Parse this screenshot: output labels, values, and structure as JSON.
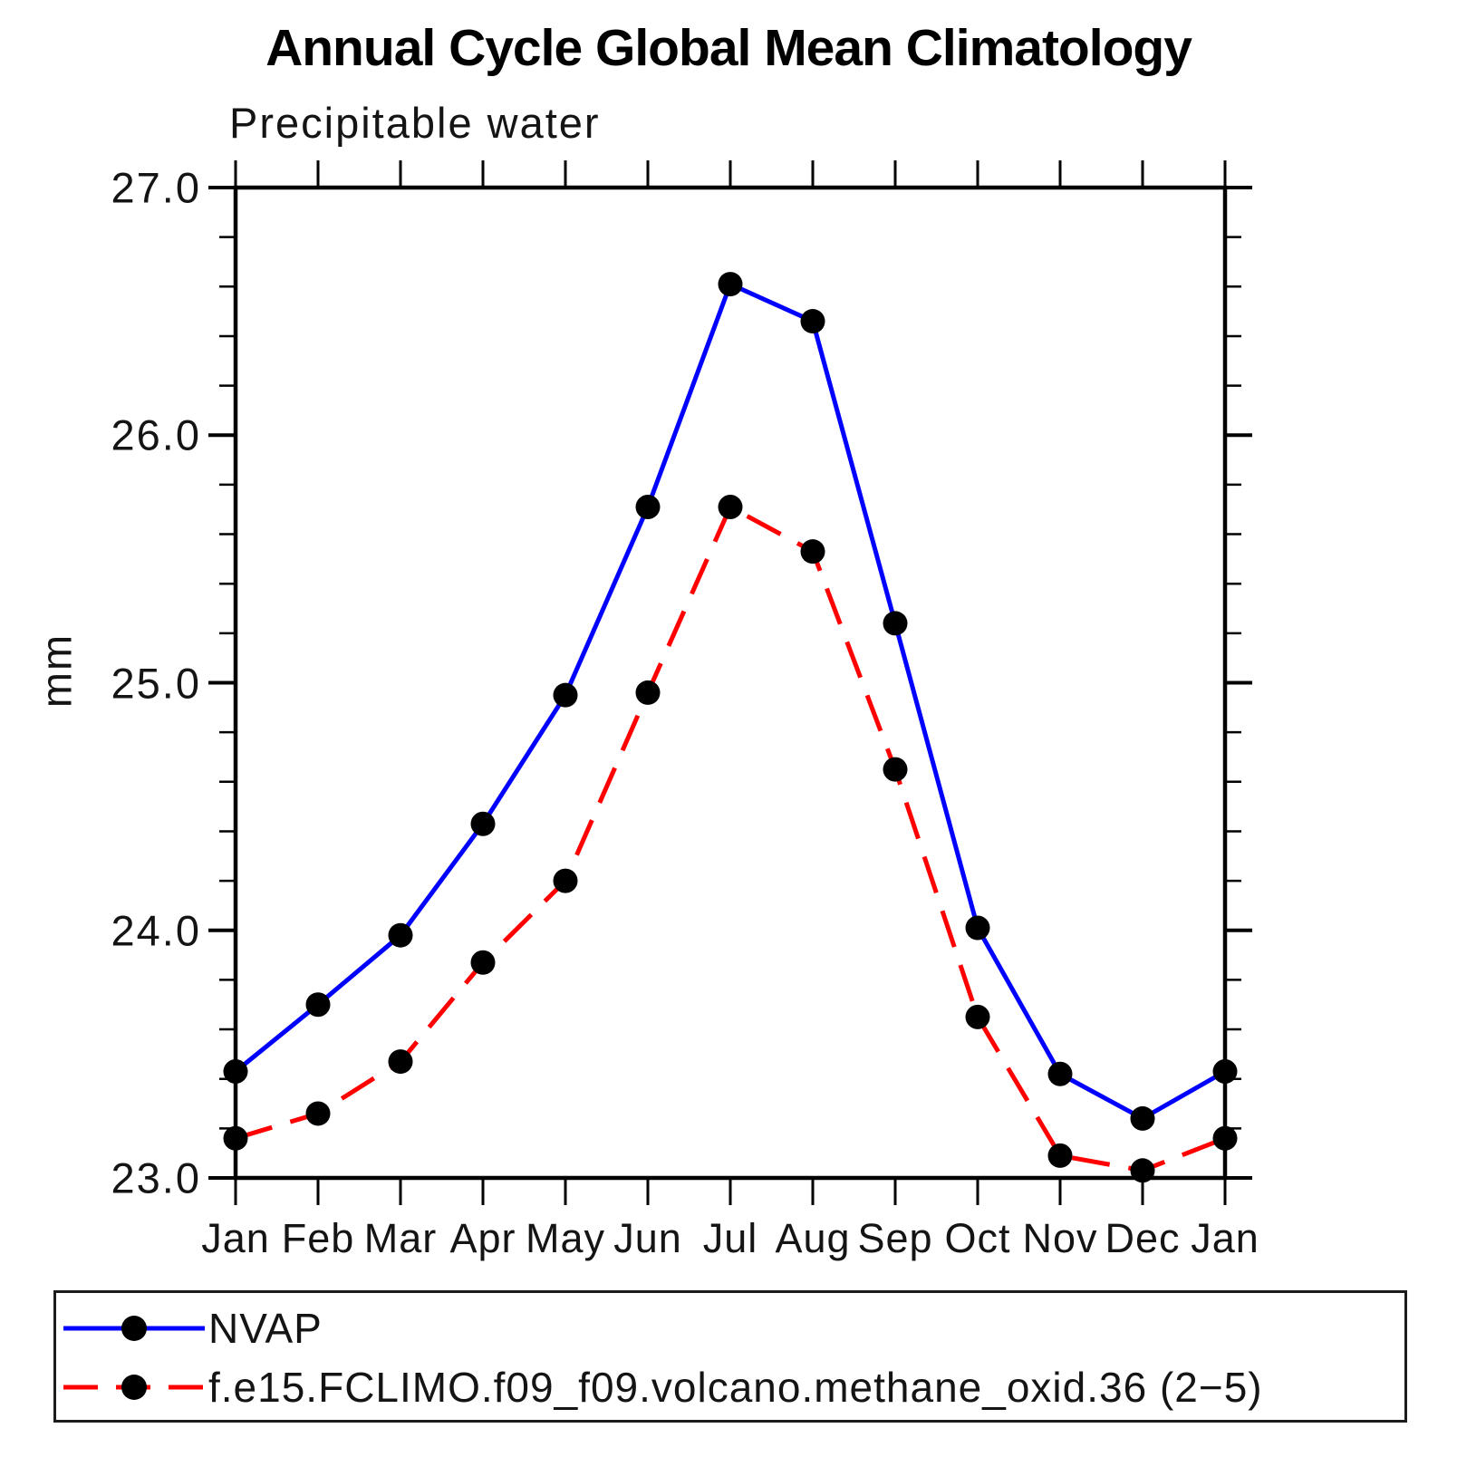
{
  "chart": {
    "title": "Annual Cycle Global Mean Climatology",
    "subtitle": "Precipitable water",
    "ylabel": "mm"
  },
  "chart_data": {
    "type": "line",
    "categories": [
      "Jan",
      "Feb",
      "Mar",
      "Apr",
      "May",
      "Jun",
      "Jul",
      "Aug",
      "Sep",
      "Oct",
      "Nov",
      "Dec",
      "Jan"
    ],
    "series": [
      {
        "name": "NVAP",
        "color": "#0000ff",
        "line_style": "solid",
        "marker": "filled-circle",
        "marker_color": "#000000",
        "values": [
          23.43,
          23.7,
          23.98,
          24.43,
          24.95,
          25.71,
          26.61,
          26.46,
          25.24,
          24.01,
          23.42,
          23.24,
          23.43
        ]
      },
      {
        "name": "f.e15.FCLIMO.f09_f09.volcano.methane_oxid.36 (2−5)",
        "color": "#ff0000",
        "line_style": "dashed",
        "marker": "filled-circle",
        "marker_color": "#000000",
        "values": [
          23.16,
          23.26,
          23.47,
          23.87,
          24.2,
          24.96,
          25.71,
          25.53,
          24.65,
          23.65,
          23.09,
          23.03,
          23.16
        ]
      }
    ],
    "title": "Annual Cycle Global Mean Climatology",
    "subtitle": "Precipitable water",
    "xlabel": "",
    "ylabel": "mm",
    "ylim": [
      23.0,
      27.0
    ],
    "yticks_major": [
      23.0,
      24.0,
      25.0,
      26.0,
      27.0
    ],
    "ytick_labels": [
      "23.0",
      "24.0",
      "25.0",
      "26.0",
      "27.0"
    ],
    "y_minor_step": 0.2,
    "grid": false,
    "frame": "box-with-outward-ticks",
    "legend_position": "bottom"
  }
}
